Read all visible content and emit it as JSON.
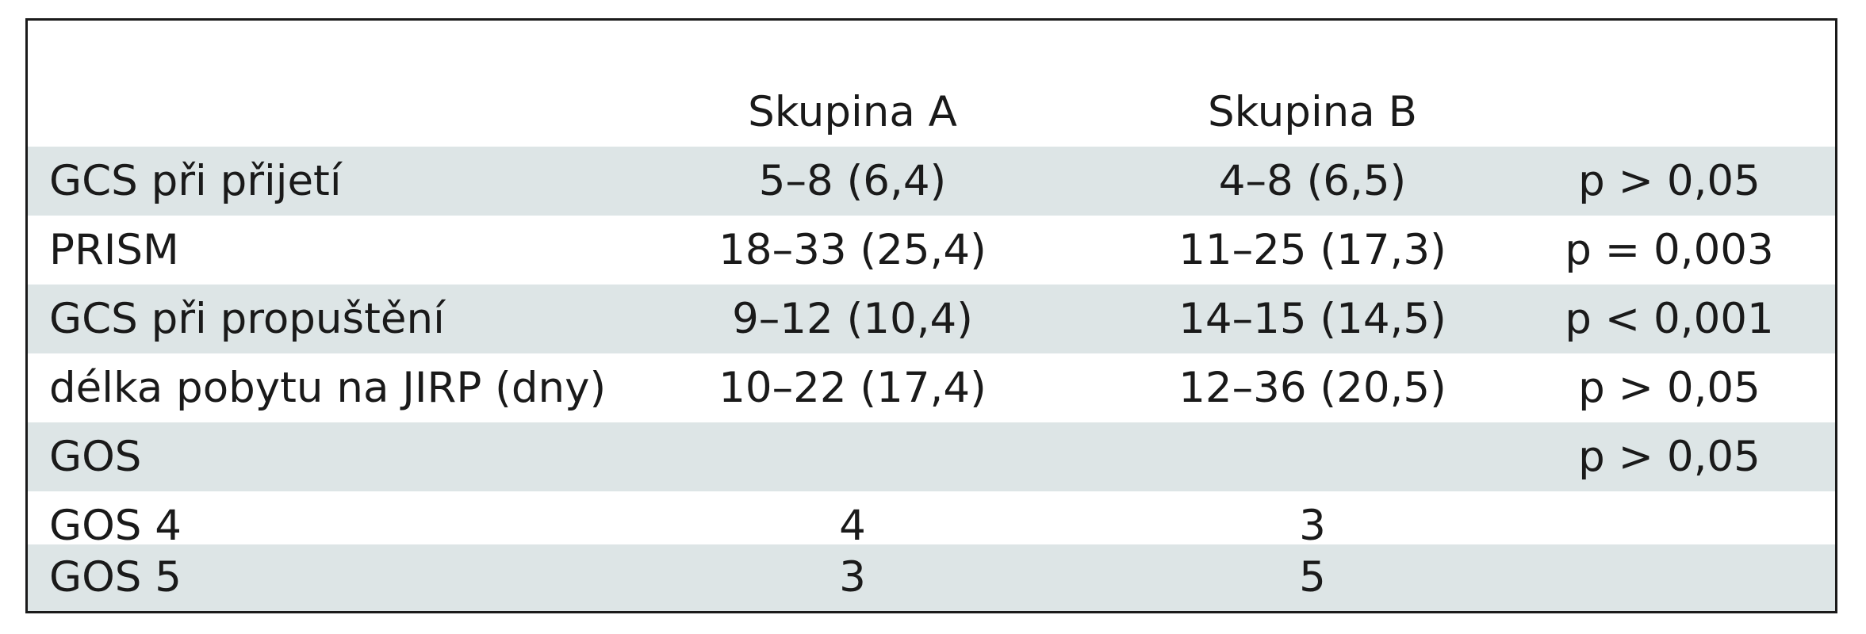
{
  "table": {
    "header": {
      "label": "",
      "group_a": "Skupina A",
      "group_b": "Skupina B",
      "p": ""
    },
    "rows": [
      {
        "label": "GCS při přijetí",
        "group_a": "5–8 (6,4)",
        "group_b": "4–8 (6,5)",
        "p": "p > 0,05"
      },
      {
        "label": "PRISM",
        "group_a": "18–33 (25,4)",
        "group_b": "11–25 (17,3)",
        "p": "p = 0,003"
      },
      {
        "label": "GCS při propuštění",
        "group_a": "9–12 (10,4)",
        "group_b": "14–15 (14,5)",
        "p": "p < 0,001"
      },
      {
        "label": "délka pobytu na JIRP (dny)",
        "group_a": "10–22 (17,4)",
        "group_b": "12–36 (20,5)",
        "p": "p > 0,05"
      },
      {
        "label": "GOS",
        "group_a": "",
        "group_b": "",
        "p": "p > 0,05"
      },
      {
        "label": "GOS 4",
        "group_a": "4",
        "group_b": "3",
        "p": ""
      },
      {
        "label": "GOS 5",
        "group_a": "3",
        "group_b": "5",
        "p": ""
      }
    ]
  },
  "colors": {
    "shaded_row": "#dde5e6",
    "border": "#1a1a1a",
    "text": "#1a1a1a"
  }
}
